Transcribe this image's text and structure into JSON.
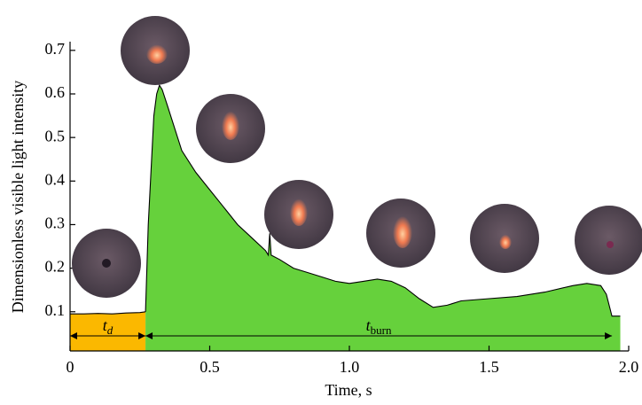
{
  "chart_data": {
    "type": "area",
    "x_label": "Time, s",
    "y_label": "Dimensionless visible light intensity",
    "xlim": [
      0,
      2.0
    ],
    "ylim": [
      0.01,
      0.72
    ],
    "xticks": [
      0,
      0.5,
      {
        "value": 1.0,
        "label": "1.0"
      },
      1.5,
      {
        "value": 2.0,
        "label": "2.0"
      }
    ],
    "yticks": [
      0.1,
      0.2,
      0.3,
      0.4,
      0.5,
      0.6,
      0.7
    ],
    "line_color": "#000000",
    "series": [
      {
        "color": "#fbb800",
        "x": [
          0,
          0.05,
          0.1,
          0.15,
          0.2,
          0.25,
          0.27
        ],
        "values": [
          0.095,
          0.095,
          0.096,
          0.095,
          0.097,
          0.098,
          0.1
        ]
      },
      {
        "color": "#66d13c",
        "x": [
          0.27,
          0.28,
          0.3,
          0.31,
          0.32,
          0.33,
          0.35,
          0.4,
          0.45,
          0.5,
          0.55,
          0.6,
          0.65,
          0.7,
          0.71,
          0.715,
          0.72,
          0.75,
          0.8,
          0.85,
          0.9,
          0.95,
          1.0,
          1.05,
          1.1,
          1.15,
          1.2,
          1.25,
          1.3,
          1.35,
          1.4,
          1.5,
          1.6,
          1.7,
          1.8,
          1.85,
          1.9,
          1.92,
          1.94,
          1.95,
          1.97
        ],
        "values": [
          0.1,
          0.3,
          0.55,
          0.6,
          0.62,
          0.61,
          0.57,
          0.47,
          0.42,
          0.38,
          0.34,
          0.3,
          0.27,
          0.24,
          0.23,
          0.28,
          0.23,
          0.22,
          0.2,
          0.19,
          0.18,
          0.17,
          0.165,
          0.17,
          0.175,
          0.17,
          0.155,
          0.13,
          0.11,
          0.115,
          0.125,
          0.13,
          0.135,
          0.145,
          0.16,
          0.165,
          0.16,
          0.14,
          0.09,
          0.09,
          0.09
        ]
      }
    ],
    "annotations": [
      {
        "text": "t",
        "sub": "d",
        "span": [
          0,
          0.27
        ]
      },
      {
        "text": "t",
        "sub": "burn",
        "span": [
          0.27,
          1.94
        ]
      }
    ]
  }
}
